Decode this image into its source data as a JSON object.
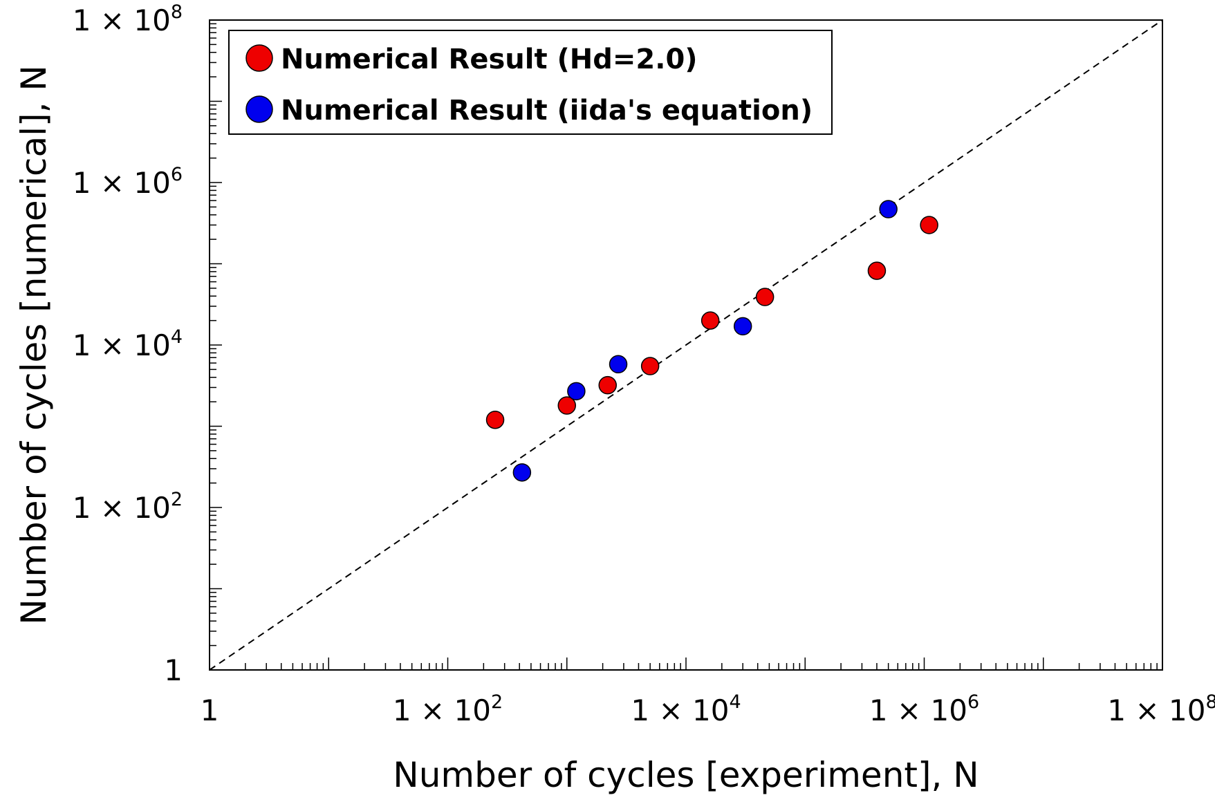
{
  "chart_data": {
    "type": "scatter",
    "title": "",
    "xlabel": "Number of cycles [experiment], N",
    "ylabel": "Number of cycles [numerical], N",
    "x_scale": "log",
    "y_scale": "log",
    "xlim": [
      1,
      100000000
    ],
    "ylim": [
      1,
      100000000
    ],
    "x_ticks": [
      {
        "value": 1,
        "label": "1",
        "base": "",
        "exp": ""
      },
      {
        "value": 100,
        "label": "",
        "base": "1 × 10",
        "exp": "2"
      },
      {
        "value": 10000,
        "label": "",
        "base": "1 × 10",
        "exp": "4"
      },
      {
        "value": 1000000,
        "label": "",
        "base": "1 × 10",
        "exp": "6"
      },
      {
        "value": 100000000,
        "label": "",
        "base": "1 × 10",
        "exp": "8"
      }
    ],
    "y_ticks": [
      {
        "value": 1,
        "label": "1",
        "base": "",
        "exp": ""
      },
      {
        "value": 100,
        "label": "",
        "base": "1 × 10",
        "exp": "2"
      },
      {
        "value": 10000,
        "label": "",
        "base": "1 × 10",
        "exp": "4"
      },
      {
        "value": 1000000,
        "label": "",
        "base": "1 × 10",
        "exp": "6"
      },
      {
        "value": 100000000,
        "label": "",
        "base": "1 × 10",
        "exp": "8"
      }
    ],
    "grid": false,
    "legend_position": "top-left",
    "reference_line": {
      "style": "dashed",
      "from": [
        1,
        1
      ],
      "to": [
        100000000,
        100000000
      ]
    },
    "series": [
      {
        "name": "Numerical Result (Hd=2.0)",
        "color": "#ee0000",
        "points": [
          {
            "x": 250,
            "y": 1200
          },
          {
            "x": 1000,
            "y": 1800
          },
          {
            "x": 2200,
            "y": 3200
          },
          {
            "x": 5000,
            "y": 5500
          },
          {
            "x": 16000,
            "y": 20000
          },
          {
            "x": 46000,
            "y": 39000
          },
          {
            "x": 400000,
            "y": 82000
          },
          {
            "x": 1100000,
            "y": 300000
          }
        ]
      },
      {
        "name": "Numerical Result (iida's equation)",
        "color": "#0000ee",
        "points": [
          {
            "x": 420,
            "y": 270
          },
          {
            "x": 1200,
            "y": 2700
          },
          {
            "x": 2700,
            "y": 5800
          },
          {
            "x": 30000,
            "y": 17000
          },
          {
            "x": 500000,
            "y": 470000
          }
        ]
      }
    ]
  }
}
